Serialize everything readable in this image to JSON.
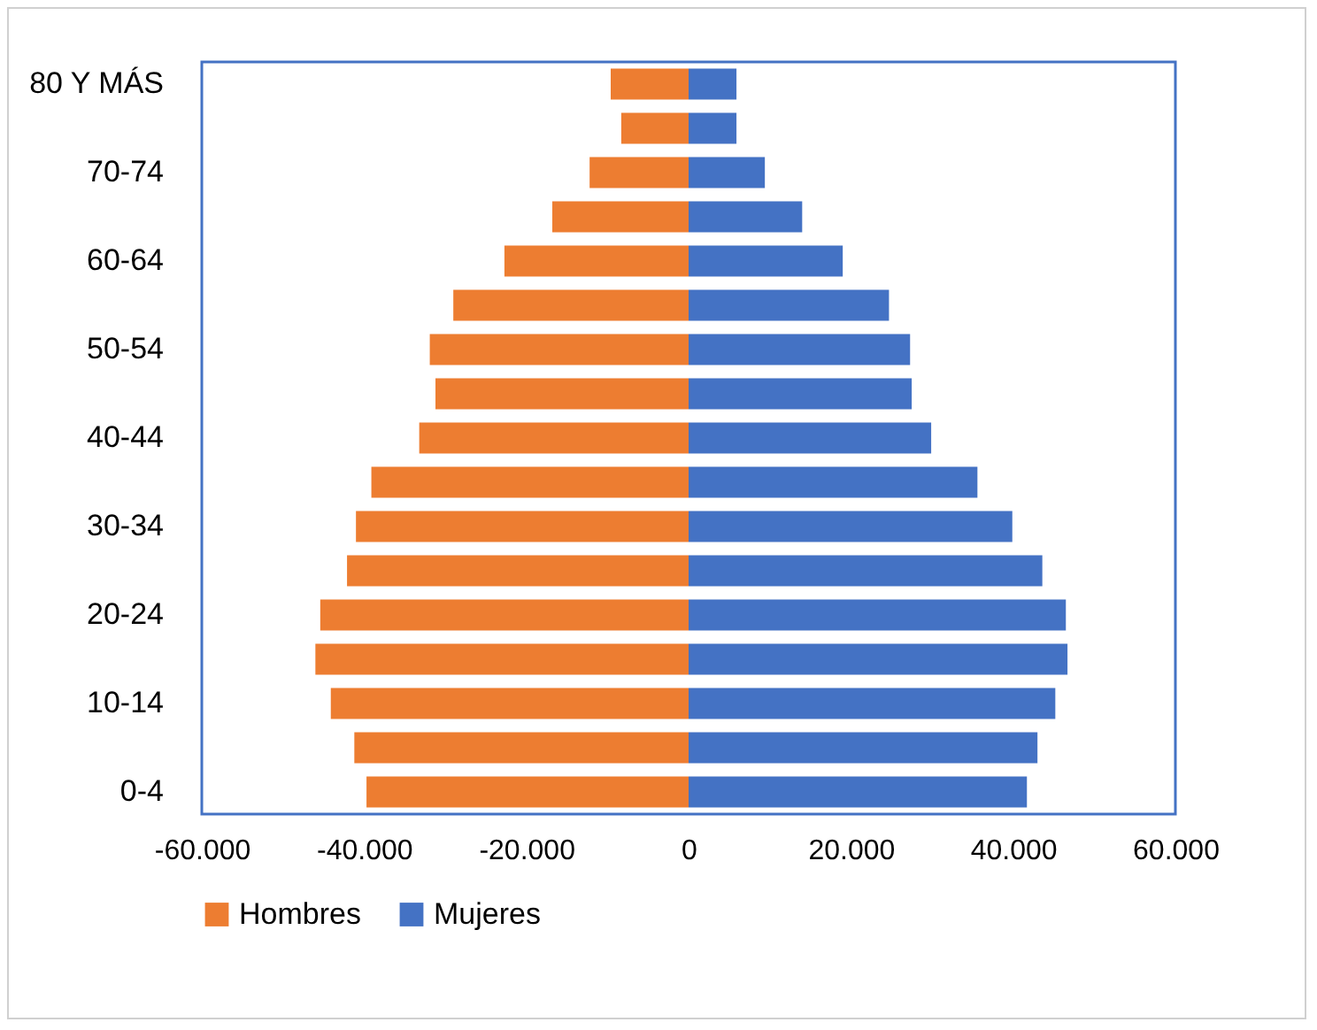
{
  "chart_data": {
    "type": "bar",
    "orientation": "horizontal",
    "stacked": true,
    "categories": [
      "80 Y MÁS",
      null,
      "70-74",
      null,
      "60-64",
      null,
      "50-54",
      null,
      "40-44",
      null,
      "30-34",
      null,
      "20-24",
      null,
      "10-14",
      null,
      "0-4"
    ],
    "series": [
      {
        "name": "Hombres",
        "color": "#ed7d31",
        "values": [
          -9600,
          -8300,
          -12200,
          -16800,
          -22700,
          -29000,
          -31900,
          -31200,
          -33200,
          -39100,
          -41000,
          -42100,
          -45400,
          -46000,
          -44100,
          -41200,
          -39700
        ]
      },
      {
        "name": "Mujeres",
        "color": "#4472c4",
        "values": [
          5900,
          5900,
          9400,
          14000,
          19000,
          24700,
          27300,
          27500,
          29900,
          35600,
          39900,
          43600,
          46500,
          46700,
          45200,
          43000,
          41700
        ]
      }
    ],
    "xlim": [
      -60000,
      60000
    ],
    "xticks": [
      {
        "value": -60000,
        "label": "-60.000"
      },
      {
        "value": -40000,
        "label": "-40.000"
      },
      {
        "value": -20000,
        "label": "-20.000"
      },
      0,
      {
        "value": 20000,
        "label": "20.000"
      },
      {
        "value": 40000,
        "label": "40.000"
      },
      {
        "value": 60000,
        "label": "60.000"
      }
    ],
    "grid": false,
    "legend": "bottom"
  }
}
